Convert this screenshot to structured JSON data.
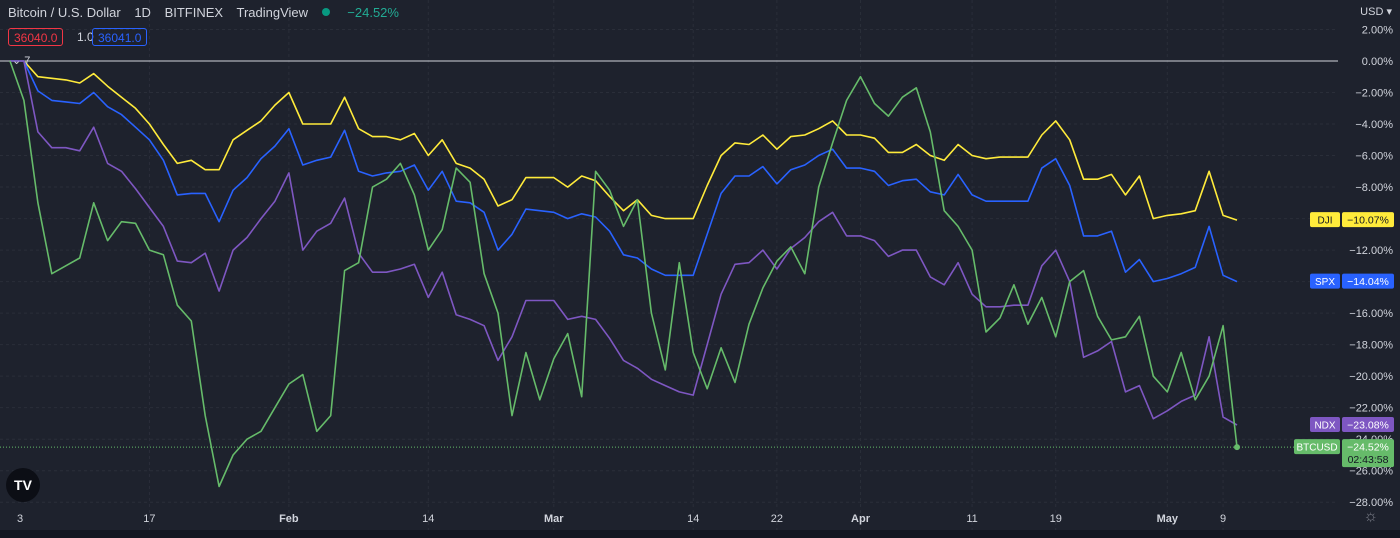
{
  "header": {
    "symbol": "Bitcoin / U.S. Dollar",
    "interval": "1D",
    "exchange": "BITFINEX",
    "source": "TradingView",
    "change": "−24.52%",
    "bid": "36040.0",
    "spread": "1.0",
    "ask": "36041.0",
    "indicator_count": "7",
    "currency": "USD",
    "logo": "TV"
  },
  "colors": {
    "background": "#1e222d",
    "grid": "#2a2e39",
    "text": "#d1d4dc",
    "DJI": "#ffeb3b",
    "SPX": "#2962ff",
    "NDX": "#7e57c2",
    "BTCUSD": "#66bb6a"
  },
  "chart_data": {
    "type": "line",
    "yunit": "%",
    "ylim": [
      -29,
      2.6
    ],
    "y_ticks": [
      "2.00%",
      "0.00%",
      "−2.00%",
      "−4.00%",
      "−6.00%",
      "−8.00%",
      "−10.00%",
      "−12.00%",
      "−14.00%",
      "−16.00%",
      "−18.00%",
      "−20.00%",
      "−22.00%",
      "−24.00%",
      "−26.00%",
      "−28.00%"
    ],
    "y_tick_values": [
      2,
      0,
      -2,
      -4,
      -6,
      -8,
      -10,
      -12,
      -14,
      -16,
      -18,
      -20,
      -22,
      -24,
      -26,
      -28
    ],
    "x_ticks": [
      "3",
      "17",
      "Feb",
      "14",
      "Mar",
      "14",
      "22",
      "Apr",
      "11",
      "19",
      "May",
      "9"
    ],
    "x_tick_index": [
      0,
      10,
      20,
      30,
      39,
      49,
      55,
      61,
      69,
      75,
      83,
      87
    ],
    "grid": true,
    "reference_line": 0,
    "series": [
      {
        "name": "DJI",
        "label": "−10.07%",
        "values": [
          0.0,
          0.0,
          -1.0,
          -1.1,
          -1.2,
          -1.4,
          -0.8,
          -1.6,
          -2.3,
          -3.0,
          -4.0,
          -5.3,
          -6.5,
          -6.3,
          -6.9,
          -6.9,
          -5.0,
          -4.4,
          -3.8,
          -2.8,
          -2.0,
          -4.0,
          -4.0,
          -4.0,
          -2.3,
          -4.3,
          -4.8,
          -4.8,
          -5.0,
          -4.6,
          -6.0,
          -5.0,
          -6.5,
          -6.8,
          -7.5,
          -9.2,
          -8.8,
          -7.4,
          -7.4,
          -7.4,
          -8.0,
          -7.3,
          -7.6,
          -8.6,
          -9.5,
          -8.8,
          -9.8,
          -10.0,
          -10.0,
          -10.0,
          -7.9,
          -6.0,
          -5.2,
          -5.3,
          -4.7,
          -5.6,
          -4.8,
          -4.7,
          -4.3,
          -3.8,
          -4.7,
          -4.7,
          -4.9,
          -5.8,
          -5.8,
          -5.3,
          -6.0,
          -6.3,
          -5.3,
          -6.0,
          -6.2,
          -6.1,
          -6.1,
          -6.1,
          -4.7,
          -3.8,
          -5.0,
          -7.5,
          -7.5,
          -7.2,
          -8.5,
          -7.3,
          -10.0,
          -9.8,
          -9.7,
          -9.5,
          -7.0,
          -9.8,
          -10.1
        ]
      },
      {
        "name": "SPX",
        "label": "−14.04%",
        "values": [
          0.0,
          0.0,
          -1.9,
          -2.5,
          -2.6,
          -2.7,
          -2.0,
          -2.9,
          -3.4,
          -4.2,
          -5.0,
          -6.3,
          -8.5,
          -8.4,
          -8.4,
          -10.2,
          -8.2,
          -7.4,
          -6.2,
          -5.4,
          -4.3,
          -6.6,
          -6.3,
          -6.1,
          -4.4,
          -7.0,
          -7.3,
          -7.1,
          -7.0,
          -6.6,
          -8.2,
          -7.0,
          -8.9,
          -9.0,
          -9.6,
          -12.0,
          -11.0,
          -9.4,
          -9.5,
          -9.6,
          -10.0,
          -9.7,
          -9.9,
          -10.8,
          -12.3,
          -12.5,
          -13.2,
          -13.6,
          -13.6,
          -13.6,
          -11.0,
          -8.4,
          -7.3,
          -7.3,
          -6.7,
          -7.8,
          -6.9,
          -6.6,
          -6.0,
          -5.6,
          -6.8,
          -6.8,
          -7.0,
          -7.9,
          -7.6,
          -7.5,
          -8.3,
          -8.5,
          -7.2,
          -8.5,
          -8.9,
          -8.9,
          -8.9,
          -8.9,
          -6.8,
          -6.2,
          -7.9,
          -11.1,
          -11.1,
          -10.8,
          -13.4,
          -12.6,
          -14.0,
          -13.8,
          -13.5,
          -13.1,
          -10.5,
          -13.6,
          -14.0
        ]
      },
      {
        "name": "NDX",
        "label": "−23.08%",
        "values": [
          0.0,
          0.0,
          -4.5,
          -5.5,
          -5.5,
          -5.7,
          -4.2,
          -6.5,
          -7.0,
          -8.1,
          -9.3,
          -10.5,
          -12.7,
          -12.8,
          -12.2,
          -14.6,
          -12.0,
          -11.2,
          -10.0,
          -8.9,
          -7.1,
          -12.0,
          -10.8,
          -10.3,
          -8.7,
          -12.2,
          -13.4,
          -13.4,
          -13.2,
          -12.9,
          -15.0,
          -13.4,
          -16.1,
          -16.4,
          -16.8,
          -19.0,
          -17.5,
          -15.2,
          -15.2,
          -15.2,
          -16.4,
          -16.2,
          -16.4,
          -17.6,
          -19.0,
          -19.5,
          -20.2,
          -20.6,
          -21.0,
          -21.2,
          -18.0,
          -14.8,
          -12.9,
          -12.8,
          -12.0,
          -13.2,
          -11.9,
          -11.2,
          -10.2,
          -9.6,
          -11.1,
          -11.1,
          -11.4,
          -12.4,
          -12.0,
          -12.0,
          -13.7,
          -14.2,
          -12.8,
          -14.8,
          -15.6,
          -15.6,
          -15.5,
          -15.5,
          -13.0,
          -12.0,
          -14.0,
          -18.8,
          -18.4,
          -17.8,
          -21.0,
          -20.6,
          -22.7,
          -22.2,
          -21.6,
          -21.2,
          -17.5,
          -22.6,
          -23.1
        ]
      },
      {
        "name": "BTCUSD",
        "label": "−24.52%",
        "values": [
          0.0,
          -2.5,
          -9.0,
          -13.5,
          -13.0,
          -12.5,
          -9.0,
          -11.4,
          -10.2,
          -10.3,
          -12.0,
          -12.3,
          -15.5,
          -16.5,
          -22.5,
          -27.0,
          -25.0,
          -24.0,
          -23.5,
          -22.0,
          -20.5,
          -19.9,
          -23.5,
          -22.5,
          -13.3,
          -12.8,
          -8.0,
          -7.5,
          -6.5,
          -8.5,
          -12.0,
          -10.7,
          -6.8,
          -7.7,
          -13.5,
          -16.0,
          -22.5,
          -18.5,
          -21.5,
          -18.9,
          -17.3,
          -21.3,
          -7.0,
          -8.2,
          -10.5,
          -8.8,
          -16.0,
          -19.6,
          -12.8,
          -18.5,
          -20.8,
          -18.2,
          -20.4,
          -16.7,
          -14.4,
          -12.7,
          -11.8,
          -13.5,
          -8.0,
          -5.2,
          -2.5,
          -1.0,
          -2.7,
          -3.5,
          -2.3,
          -1.7,
          -4.5,
          -9.5,
          -10.5,
          -12.0,
          -17.2,
          -16.3,
          -14.2,
          -16.7,
          -15.0,
          -17.5,
          -14.0,
          -13.3,
          -16.2,
          -17.7,
          -17.5,
          -16.2,
          -20.0,
          -21.0,
          -18.5,
          -21.5,
          -20.0,
          -16.8,
          -24.5
        ]
      }
    ],
    "last_label_time": "02:43:58"
  }
}
